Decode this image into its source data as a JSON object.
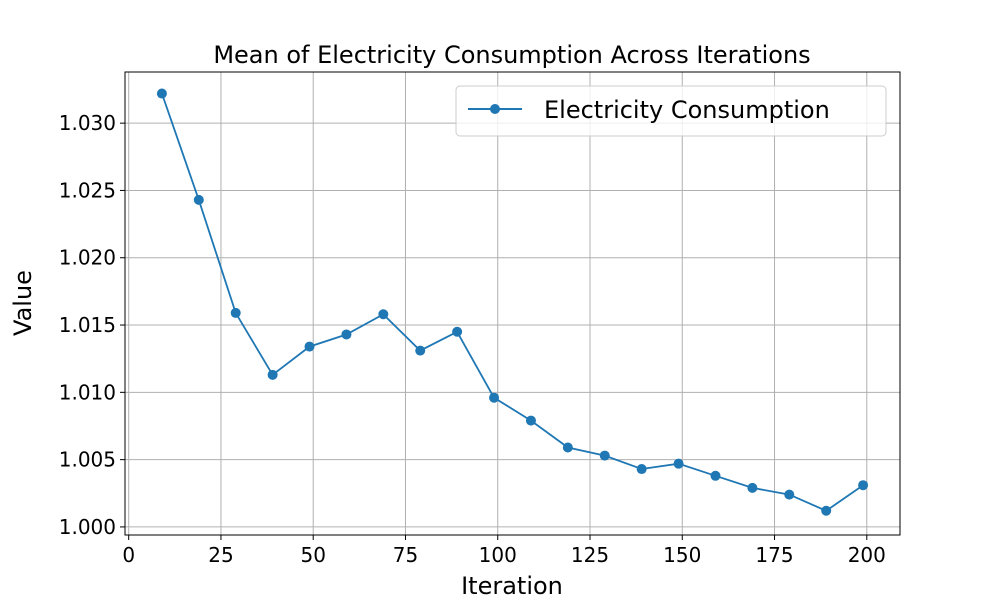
{
  "chart_data": {
    "type": "line",
    "title": "Mean of Electricity Consumption Across Iterations",
    "xlabel": "Iteration",
    "ylabel": "Value",
    "xlim": [
      -1,
      209
    ],
    "ylim": [
      0.9994,
      1.0338
    ],
    "xticks": [
      0,
      25,
      50,
      75,
      100,
      125,
      150,
      175,
      200
    ],
    "yticks": [
      1.0,
      1.005,
      1.01,
      1.015,
      1.02,
      1.025,
      1.03
    ],
    "ytick_labels": [
      "1.000",
      "1.005",
      "1.010",
      "1.015",
      "1.020",
      "1.025",
      "1.030"
    ],
    "grid": true,
    "legend_position": "top-right",
    "series": [
      {
        "name": "Electricity Consumption",
        "color": "#1f77b4",
        "marker": "circle",
        "x": [
          9,
          19,
          29,
          39,
          49,
          59,
          69,
          79,
          89,
          99,
          109,
          119,
          129,
          139,
          149,
          159,
          169,
          179,
          189,
          199
        ],
        "y": [
          1.0322,
          1.0243,
          1.0159,
          1.0113,
          1.0134,
          1.0143,
          1.0158,
          1.0131,
          1.0145,
          1.0096,
          1.0079,
          1.0059,
          1.0053,
          1.0043,
          1.0047,
          1.0038,
          1.0029,
          1.0024,
          1.0012,
          1.0031
        ]
      }
    ]
  }
}
